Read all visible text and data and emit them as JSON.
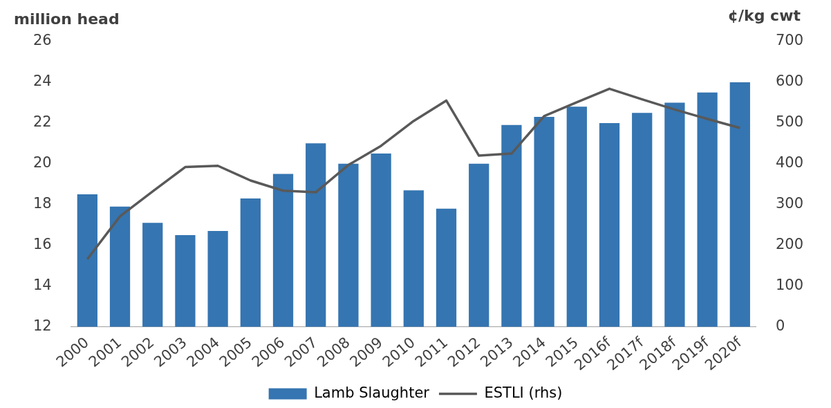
{
  "chart_data": {
    "type": "bar",
    "ylabel": "million head",
    "y2label": "¢/kg cwt",
    "categories": [
      "2000",
      "2001",
      "2002",
      "2003",
      "2004",
      "2005",
      "2006",
      "2007",
      "2008",
      "2009",
      "2010",
      "2011",
      "2012",
      "2013",
      "2014",
      "2015",
      "2016f",
      "2017f",
      "2018f",
      "2019f",
      "2020f"
    ],
    "series": [
      {
        "name": "Lamb Slaughter",
        "color": "#3575b1",
        "values": [
          18.5,
          17.9,
          17.1,
          16.5,
          16.7,
          18.3,
          19.5,
          21.0,
          20.0,
          20.5,
          18.7,
          17.8,
          20.0,
          21.9,
          22.3,
          22.8,
          22.0,
          22.5,
          23.0,
          23.5,
          24.0
        ]
      },
      {
        "name": "ESTLI (rhs)",
        "type": "line",
        "axis": "y2",
        "color": "#595959",
        "values": [
          166,
          271,
          332,
          392,
          395,
          359,
          334,
          330,
          397,
          444,
          505,
          555,
          420,
          425,
          517,
          551,
          584,
          558,
          533,
          510,
          488
        ]
      }
    ],
    "ylim": [
      12,
      26
    ],
    "yticks": [
      12,
      14,
      16,
      18,
      20,
      22,
      24,
      26
    ],
    "y2lim": [
      0,
      700
    ],
    "y2ticks": [
      0,
      100,
      200,
      300,
      400,
      500,
      600,
      700
    ],
    "grid": false,
    "legend": "bottom",
    "marker": "none",
    "line_style": "solid"
  }
}
